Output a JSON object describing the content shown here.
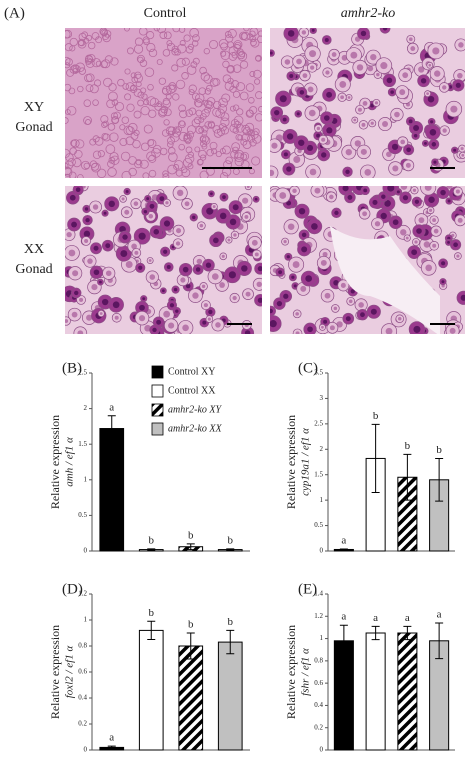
{
  "panel_a": {
    "label": "(A)",
    "columns": [
      "Control",
      "amhr2-ko"
    ],
    "rows": [
      [
        "XY",
        "Gonad"
      ],
      [
        "XX",
        "Gonad"
      ]
    ]
  },
  "legend": [
    {
      "name": "Control XY",
      "color": "#000000",
      "hatch": false
    },
    {
      "name": "Control XX",
      "color": "#ffffff",
      "hatch": false
    },
    {
      "name": "amhr2-ko XY",
      "color": "#ffffff",
      "hatch": true
    },
    {
      "name": "amhr2-ko XX",
      "color": "#c0c0c0",
      "hatch": false
    }
  ],
  "chart_data": [
    {
      "type": "bar",
      "label": "(B)",
      "ylabel": [
        "Relative expression",
        "amh / ef1 α"
      ],
      "ylim": [
        0,
        2.5
      ],
      "yticks": [
        0,
        0.5,
        1,
        1.5,
        2,
        2.5
      ],
      "values": [
        1.72,
        0.02,
        0.06,
        0.02
      ],
      "errors": [
        0.18,
        0.01,
        0.04,
        0.01
      ],
      "annotations": [
        "a",
        "b",
        "b",
        "b"
      ]
    },
    {
      "type": "bar",
      "label": "(C)",
      "ylabel": [
        "Relative expression",
        "cyp19a1 / ef1 α"
      ],
      "ylim": [
        0,
        3.5
      ],
      "yticks": [
        0,
        0.5,
        1,
        1.5,
        2,
        2.5,
        3,
        3.5
      ],
      "values": [
        0.03,
        1.82,
        1.45,
        1.4
      ],
      "errors": [
        0.01,
        0.67,
        0.45,
        0.42
      ],
      "annotations": [
        "a",
        "b",
        "b",
        "b"
      ]
    },
    {
      "type": "bar",
      "label": "(D)",
      "ylabel": [
        "Relative expression",
        "foxl2 / ef1 α"
      ],
      "ylim": [
        0,
        1.2
      ],
      "yticks": [
        0,
        0.2,
        0.4,
        0.6,
        0.8,
        1,
        1.2
      ],
      "values": [
        0.02,
        0.92,
        0.8,
        0.83
      ],
      "errors": [
        0.01,
        0.07,
        0.1,
        0.09
      ],
      "annotations": [
        "a",
        "b",
        "b",
        "b"
      ]
    },
    {
      "type": "bar",
      "label": "(E)",
      "ylabel": [
        "Relative expression",
        "fshr / ef1 α"
      ],
      "ylim": [
        0,
        1.4
      ],
      "yticks": [
        0,
        0.2,
        0.4,
        0.6,
        0.8,
        1,
        1.2,
        1.4
      ],
      "values": [
        0.98,
        1.05,
        1.05,
        0.98
      ],
      "errors": [
        0.14,
        0.06,
        0.06,
        0.16
      ],
      "annotations": [
        "a",
        "a",
        "a",
        "a"
      ]
    }
  ]
}
